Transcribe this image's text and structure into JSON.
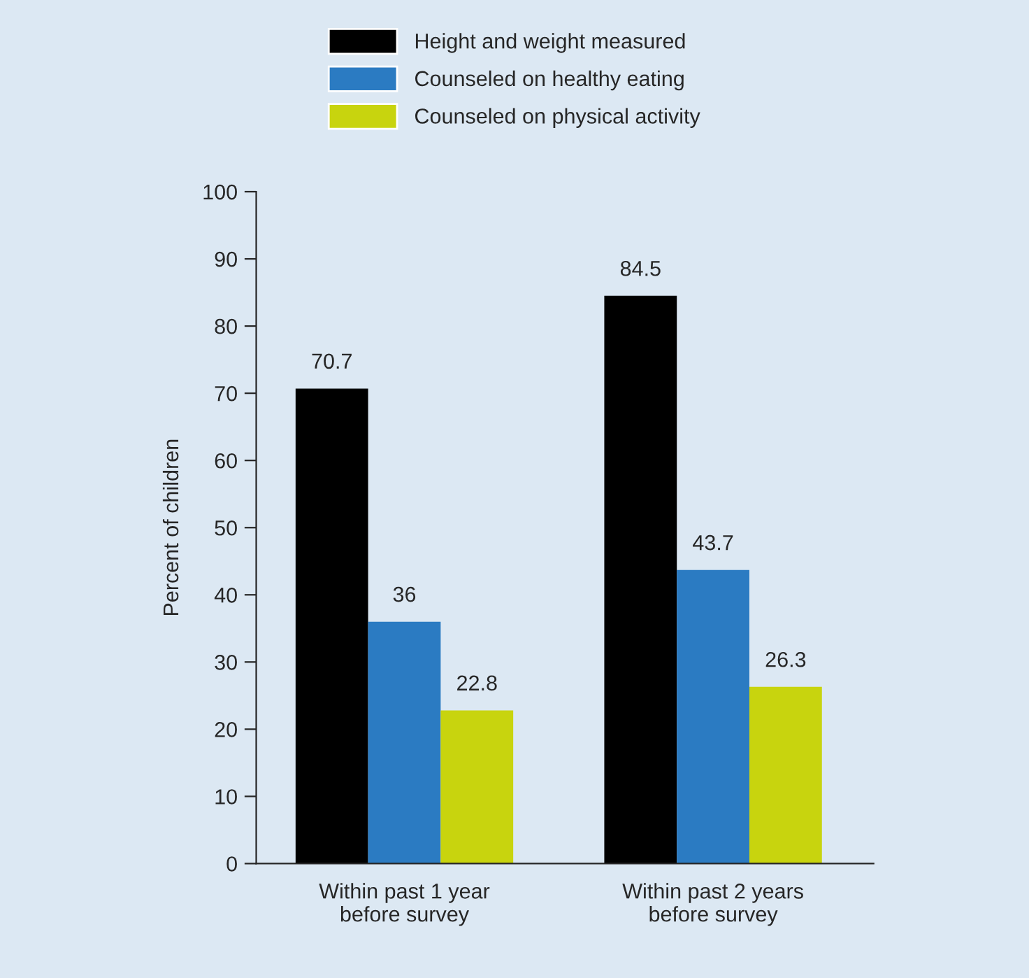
{
  "chart_data": {
    "type": "bar",
    "categories": [
      "Within past 1 year\nbefore survey",
      "Within past 2 years\nbefore survey"
    ],
    "series": [
      {
        "name": "Height and weight measured",
        "color": "#000000",
        "values": [
          70.7,
          84.5
        ]
      },
      {
        "name": "Counseled on healthy eating",
        "color": "#2b7bc2",
        "values": [
          36,
          43.7
        ]
      },
      {
        "name": "Counseled on physical activity",
        "color": "#c8d40e",
        "values": [
          22.8,
          26.3
        ]
      }
    ],
    "ylabel": "Percent of children",
    "ylim": [
      0,
      100
    ],
    "yticks": [
      0,
      10,
      20,
      30,
      40,
      50,
      60,
      70,
      80,
      90,
      100
    ],
    "data_labels": true,
    "legend": "top",
    "grid": false
  }
}
